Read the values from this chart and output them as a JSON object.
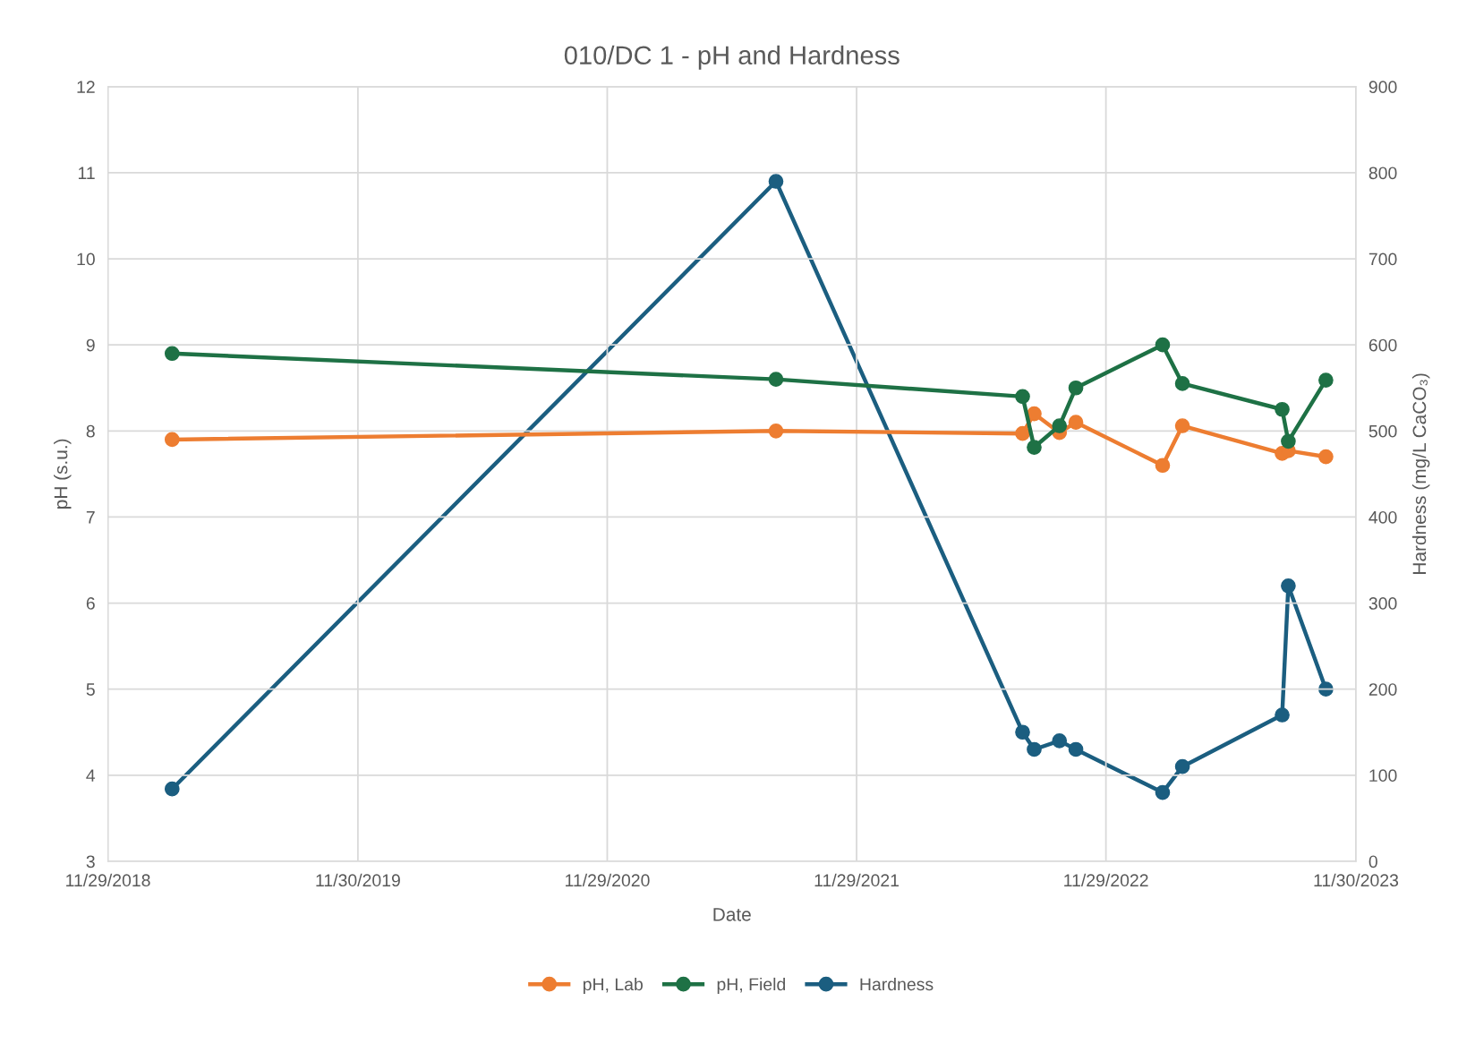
{
  "chart_data": {
    "type": "line",
    "title": "010/DC 1 - pH and Hardness",
    "xlabel": "Date",
    "ylabel": "pH (s.u.)",
    "y2label": "Hardness (mg/L CaCO₃)",
    "x": [
      "2019-03-03",
      "2021-08-03",
      "2022-07-30",
      "2022-08-16",
      "2022-09-22",
      "2022-10-16",
      "2023-02-20",
      "2023-03-21",
      "2023-08-14",
      "2023-08-23",
      "2023-10-17"
    ],
    "series": [
      {
        "name": "pH, Lab",
        "color": "#ed7d31",
        "values": [
          7.9,
          8.0,
          7.97,
          8.2,
          7.98,
          8.1,
          7.6,
          8.06,
          7.74,
          7.77,
          7.7
        ]
      },
      {
        "name": "pH, Field",
        "color": "#1e7145",
        "values": [
          8.9,
          8.6,
          8.4,
          7.81,
          8.06,
          8.5,
          9.0,
          8.55,
          8.25,
          7.88,
          8.59
        ]
      },
      {
        "name": "Hardness",
        "color": "#1b5e80",
        "axis": "y2",
        "values": [
          84,
          790,
          150,
          130,
          140,
          130,
          80,
          110,
          170,
          320,
          200
        ]
      }
    ],
    "xlim": [
      "2018-11-29",
      "2023-11-30"
    ],
    "xticks": [
      {
        "value": "2018-11-29",
        "label": "11/29/2018"
      },
      {
        "value": "2019-11-30",
        "label": "11/30/2019"
      },
      {
        "value": "2020-11-29",
        "label": "11/29/2020"
      },
      {
        "value": "2021-11-29",
        "label": "11/29/2021"
      },
      {
        "value": "2022-11-29",
        "label": "11/29/2022"
      },
      {
        "value": "2023-11-30",
        "label": "11/30/2023"
      }
    ],
    "ylim": [
      3,
      12
    ],
    "yticks": [
      3,
      4,
      5,
      6,
      7,
      8,
      9,
      10,
      11,
      12
    ],
    "y2lim": [
      0,
      900
    ],
    "y2ticks": [
      0,
      100,
      200,
      300,
      400,
      500,
      600,
      700,
      800,
      900
    ],
    "grid": true,
    "legend": "bottom",
    "marker": "circle",
    "line_style": "solid"
  }
}
